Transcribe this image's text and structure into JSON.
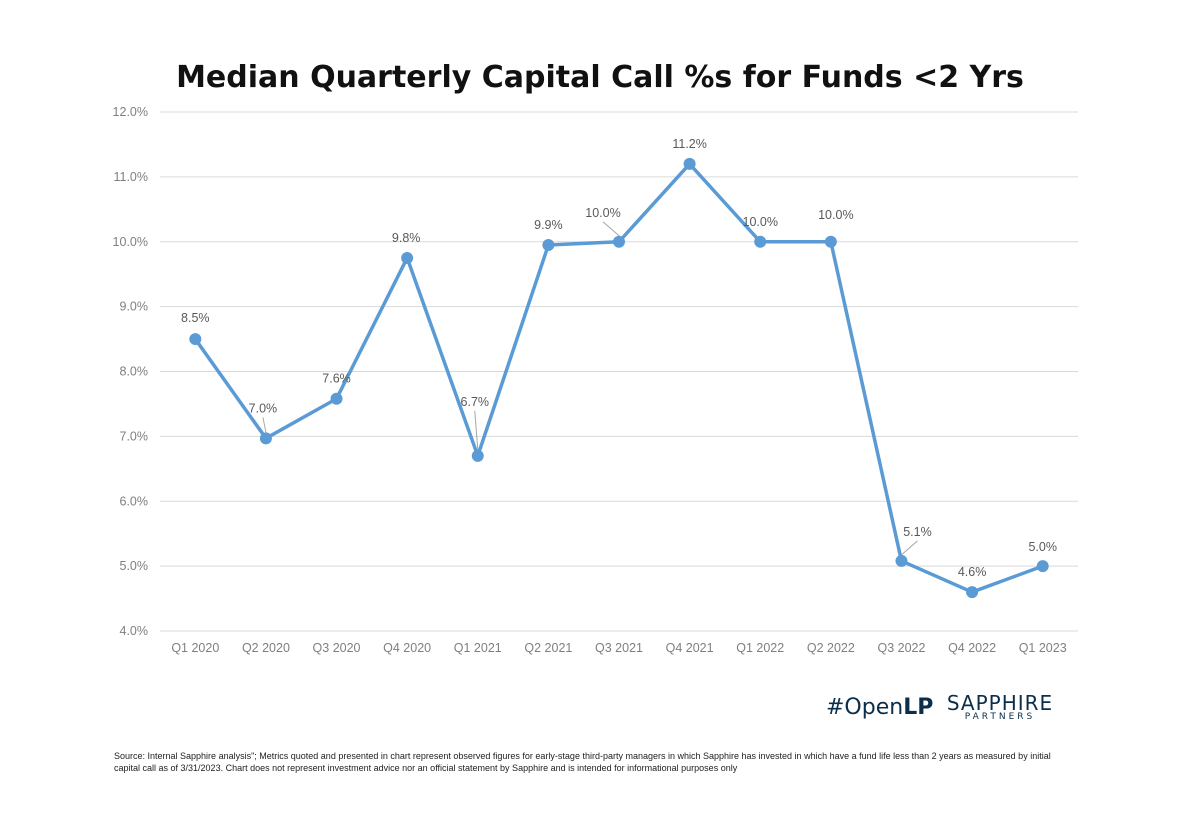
{
  "chart_data": {
    "type": "line",
    "title": "Median Quarterly Capital Call %s for Funds <2 Yrs",
    "categories": [
      "Q1 2020",
      "Q2 2020",
      "Q3 2020",
      "Q4 2020",
      "Q1 2021",
      "Q2 2021",
      "Q3 2021",
      "Q4 2021",
      "Q1 2022",
      "Q2 2022",
      "Q3 2022",
      "Q4 2022",
      "Q1 2023"
    ],
    "values": [
      8.5,
      6.97,
      7.58,
      9.75,
      6.7,
      9.95,
      10.0,
      11.2,
      10.0,
      10.0,
      5.08,
      4.6,
      5.0
    ],
    "data_labels": [
      "8.5%",
      "7.0%",
      "7.6%",
      "9.8%",
      "6.7%",
      "9.9%",
      "10.0%",
      "11.2%",
      "10.0%",
      "10.0%",
      "5.1%",
      "4.6%",
      "5.0%"
    ],
    "ylim": [
      4.0,
      12.0
    ],
    "y_ticks": [
      4.0,
      5.0,
      6.0,
      7.0,
      8.0,
      9.0,
      10.0,
      11.0,
      12.0
    ],
    "y_tick_labels": [
      "4.0%",
      "5.0%",
      "6.0%",
      "7.0%",
      "8.0%",
      "9.0%",
      "10.0%",
      "11.0%",
      "12.0%"
    ],
    "xlabel": "",
    "ylabel": "",
    "grid": true,
    "legend": "none",
    "line_color": "#5b9bd5"
  },
  "logos": {
    "openlp_hash": "#Open",
    "openlp_bold": "LP",
    "sapphire_name": "SAPPHIRE",
    "sapphire_sub": "PARTNERS"
  },
  "footer": {
    "source_note": "Source: Internal Sapphire analysis\"; Metrics quoted and presented in chart represent observed figures for early-stage third-party managers in which Sapphire has invested in which have a fund life less than 2 years as measured by initial capital call as of 3/31/2023. Chart does not represent investment advice nor an official statement by Sapphire and is intended for informational purposes only"
  }
}
